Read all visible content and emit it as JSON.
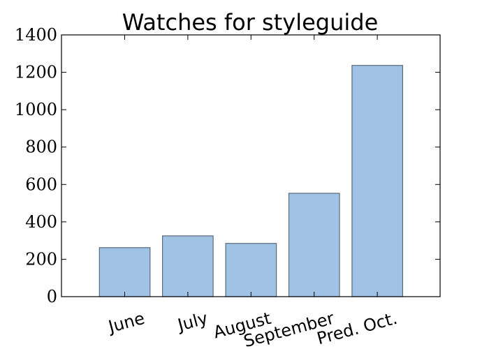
{
  "chart_data": {
    "type": "bar",
    "title": "Watches for styleguide",
    "xlabel": "",
    "ylabel": "",
    "categories": [
      "June",
      "July",
      "August",
      "September",
      "Pred. Oct."
    ],
    "values": [
      262,
      325,
      285,
      553,
      1237
    ],
    "ylim": [
      0,
      1400
    ],
    "yticks": [
      "0",
      "200",
      "400",
      "600",
      "800",
      "1000",
      "1200",
      "1400"
    ],
    "grid": false,
    "legend": "none",
    "colors": {
      "bar_fill": "#a0c2e4",
      "bar_edge": "#5a6a7a",
      "axis": "#000000"
    }
  }
}
